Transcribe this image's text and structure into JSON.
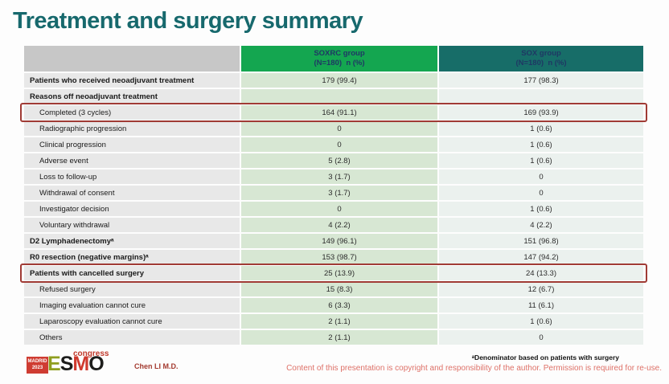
{
  "slide": {
    "title": "Treatment and surgery summary"
  },
  "table": {
    "columns": [
      {
        "line1": "SOXRC group",
        "line2": "(N=180)  n (%)"
      },
      {
        "line1": "SOX group",
        "line2": "(N=180)  n (%)"
      }
    ],
    "rows": [
      {
        "label": "Patients who received neoadjuvant treatment",
        "bold": true,
        "indent": false,
        "soxrc": "179 (99.4)",
        "sox": "177 (98.3)",
        "highlight": false
      },
      {
        "label": "Reasons off neoadjuvant treatment",
        "bold": true,
        "indent": false,
        "soxrc": "",
        "sox": "",
        "highlight": false
      },
      {
        "label": "Completed (3 cycles)",
        "bold": false,
        "indent": true,
        "soxrc": "164 (91.1)",
        "sox": "169 (93.9)",
        "highlight": true
      },
      {
        "label": "Radiographic progression",
        "bold": false,
        "indent": true,
        "soxrc": "0",
        "sox": "1 (0.6)",
        "highlight": false
      },
      {
        "label": "Clinical progression",
        "bold": false,
        "indent": true,
        "soxrc": "0",
        "sox": "1 (0.6)",
        "highlight": false
      },
      {
        "label": "Adverse event",
        "bold": false,
        "indent": true,
        "soxrc": "5 (2.8)",
        "sox": "1 (0.6)",
        "highlight": false
      },
      {
        "label": "Loss to follow-up",
        "bold": false,
        "indent": true,
        "soxrc": "3 (1.7)",
        "sox": "0",
        "highlight": false
      },
      {
        "label": "Withdrawal of consent",
        "bold": false,
        "indent": true,
        "soxrc": "3 (1.7)",
        "sox": "0",
        "highlight": false
      },
      {
        "label": "Investigator decision",
        "bold": false,
        "indent": true,
        "soxrc": "0",
        "sox": "1 (0.6)",
        "highlight": false
      },
      {
        "label": "Voluntary withdrawal",
        "bold": false,
        "indent": true,
        "soxrc": "4 (2.2)",
        "sox": "4 (2.2)",
        "highlight": false
      },
      {
        "label": "D2 Lymphadenectomyᵃ",
        "bold": true,
        "indent": false,
        "soxrc": "149 (96.1)",
        "sox": "151 (96.8)",
        "highlight": false
      },
      {
        "label": "R0 resection (negative margins)ᵃ",
        "bold": true,
        "indent": false,
        "soxrc": "153 (98.7)",
        "sox": "147 (94.2)",
        "highlight": false
      },
      {
        "label": "Patients with cancelled surgery",
        "bold": true,
        "indent": false,
        "soxrc": "25 (13.9)",
        "sox": "24 (13.3)",
        "highlight": true
      },
      {
        "label": "Refused surgery",
        "bold": false,
        "indent": true,
        "soxrc": "15 (8.3)",
        "sox": "12 (6.7)",
        "highlight": false
      },
      {
        "label": "Imaging evaluation cannot cure",
        "bold": false,
        "indent": true,
        "soxrc": "6 (3.3)",
        "sox": "11 (6.1)",
        "highlight": false
      },
      {
        "label": "Laparoscopy evaluation cannot cure",
        "bold": false,
        "indent": true,
        "soxrc": "2 (1.1)",
        "sox": "1 (0.6)",
        "highlight": false
      },
      {
        "label": "Others",
        "bold": false,
        "indent": true,
        "soxrc": "2 (1.1)",
        "sox": "0",
        "highlight": false
      }
    ],
    "colors": {
      "title_text": "#17696d",
      "soxrc_header_bg": "#14a650",
      "sox_header_bg": "#176d68",
      "header_text": "#1f3864",
      "header_empty_bg": "#c7c7c7",
      "label_cell_bg": "#e8e8e8",
      "soxrc_cell_bg": "#d7e7d3",
      "sox_cell_bg": "#ebf1ee",
      "highlight_border": "#a03b35"
    }
  },
  "footer": {
    "logo": {
      "city": "MADRID",
      "year": "2023",
      "letters": [
        {
          "char": "E",
          "color": "#8f9e1f"
        },
        {
          "char": "S",
          "color": "#1d1d1b"
        },
        {
          "char": "M",
          "color": "#d03a2f"
        },
        {
          "char": "O",
          "color": "#1d1d1b"
        }
      ],
      "congress": "congress"
    },
    "presenter": "Chen LI M.D.",
    "footnote": "ᵃDenominator based on patients with surgery",
    "copyright": "Content of this presentation is copyright and responsibility of the author. Permission is required for re-use."
  }
}
